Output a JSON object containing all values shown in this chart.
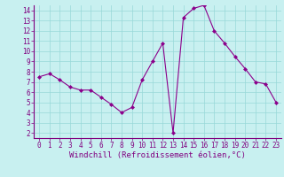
{
  "x": [
    0,
    1,
    2,
    3,
    4,
    5,
    6,
    7,
    8,
    9,
    10,
    11,
    12,
    13,
    14,
    15,
    16,
    17,
    18,
    19,
    20,
    21,
    22,
    23
  ],
  "y": [
    7.5,
    7.8,
    7.2,
    6.5,
    6.2,
    6.2,
    5.5,
    4.8,
    4.0,
    4.5,
    7.2,
    9.0,
    10.8,
    2.0,
    13.3,
    14.2,
    14.5,
    12.0,
    10.8,
    9.5,
    8.3,
    7.0,
    6.8,
    5.0
  ],
  "line_color": "#8b008b",
  "marker": "D",
  "marker_size": 2,
  "bg_color": "#c8f0f0",
  "grid_color": "#98d8d8",
  "xlabel": "Windchill (Refroidissement éolien,°C)",
  "xlim": [
    -0.5,
    23.5
  ],
  "ylim": [
    1.5,
    14.5
  ],
  "yticks": [
    2,
    3,
    4,
    5,
    6,
    7,
    8,
    9,
    10,
    11,
    12,
    13,
    14
  ],
  "xticks": [
    0,
    1,
    2,
    3,
    4,
    5,
    6,
    7,
    8,
    9,
    10,
    11,
    12,
    13,
    14,
    15,
    16,
    17,
    18,
    19,
    20,
    21,
    22,
    23
  ],
  "tick_color": "#800080",
  "label_fontsize": 6.5,
  "tick_fontsize": 5.5
}
